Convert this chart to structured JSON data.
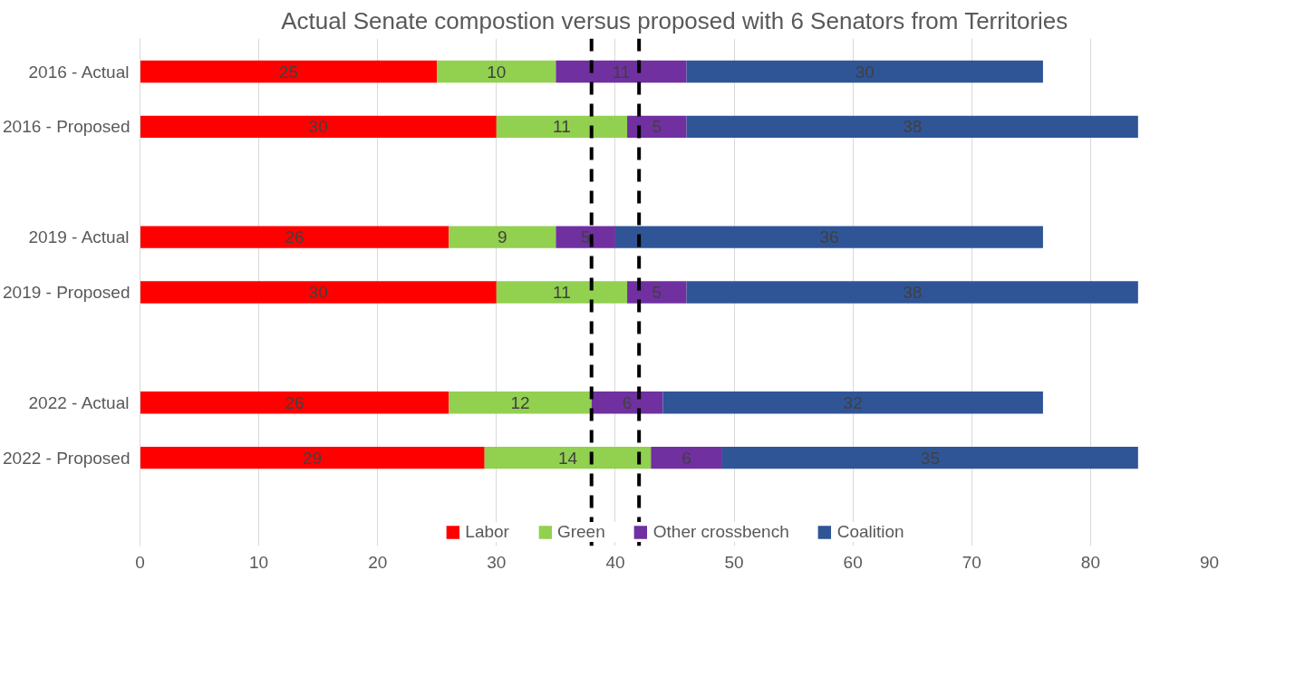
{
  "chart_data": {
    "type": "bar",
    "orientation": "horizontal",
    "stacked": true,
    "title": "Actual Senate compostion versus proposed with 6 Senators from Territories",
    "categories": [
      "2016 - Actual",
      "2016 - Proposed",
      null,
      "2019 - Actual",
      "2019 - Proposed",
      null,
      "2022 - Actual",
      "2022 - Proposed"
    ],
    "series": [
      {
        "name": "Labor",
        "color": "#ff0000",
        "values": [
          25,
          30,
          null,
          26,
          30,
          null,
          26,
          29
        ]
      },
      {
        "name": "Green",
        "color": "#92d050",
        "values": [
          10,
          11,
          null,
          9,
          11,
          null,
          12,
          14
        ]
      },
      {
        "name": "Other crossbench",
        "color": "#7030a0",
        "values": [
          11,
          5,
          null,
          5,
          5,
          null,
          6,
          6
        ]
      },
      {
        "name": "Coalition",
        "color": "#2f5597",
        "values": [
          30,
          38,
          null,
          36,
          38,
          null,
          32,
          35
        ]
      }
    ],
    "data_labels": true,
    "xlim": [
      0,
      90
    ],
    "xticks": [
      0,
      10,
      20,
      30,
      40,
      50,
      60,
      70,
      80,
      90
    ],
    "grid": "x",
    "legend": "bottom",
    "ref_lines": [
      {
        "axis": "x",
        "value": 38,
        "color": "#000000",
        "line_style": "dashed"
      },
      {
        "axis": "x",
        "value": 42,
        "color": "#000000",
        "line_style": "dashed"
      }
    ]
  }
}
